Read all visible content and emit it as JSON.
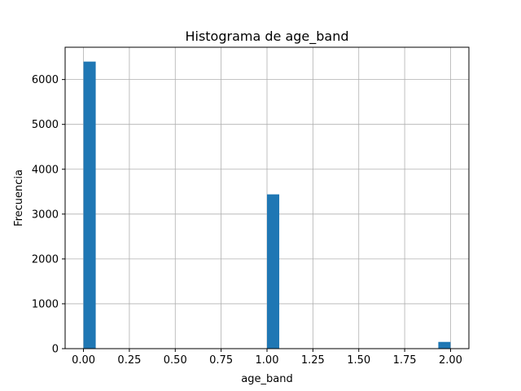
{
  "chart_data": {
    "type": "bar",
    "title": "Histograma de age_band",
    "xlabel": "age_band",
    "ylabel": "Frecuencia",
    "xlim": [
      -0.1,
      2.1
    ],
    "ylim": [
      0,
      6720
    ],
    "xticks": [
      "0.00",
      "0.25",
      "0.50",
      "0.75",
      "1.00",
      "1.25",
      "1.50",
      "1.75",
      "2.00"
    ],
    "yticks": [
      "0",
      "1000",
      "2000",
      "3000",
      "4000",
      "5000",
      "6000"
    ],
    "grid": true,
    "bar_color": "#1f77b4",
    "bins": [
      {
        "x0": 0.0,
        "x1": 0.0667,
        "count": 6400
      },
      {
        "x0": 1.0,
        "x1": 1.0667,
        "count": 3440
      },
      {
        "x0": 1.9333,
        "x1": 2.0,
        "count": 150
      }
    ]
  }
}
